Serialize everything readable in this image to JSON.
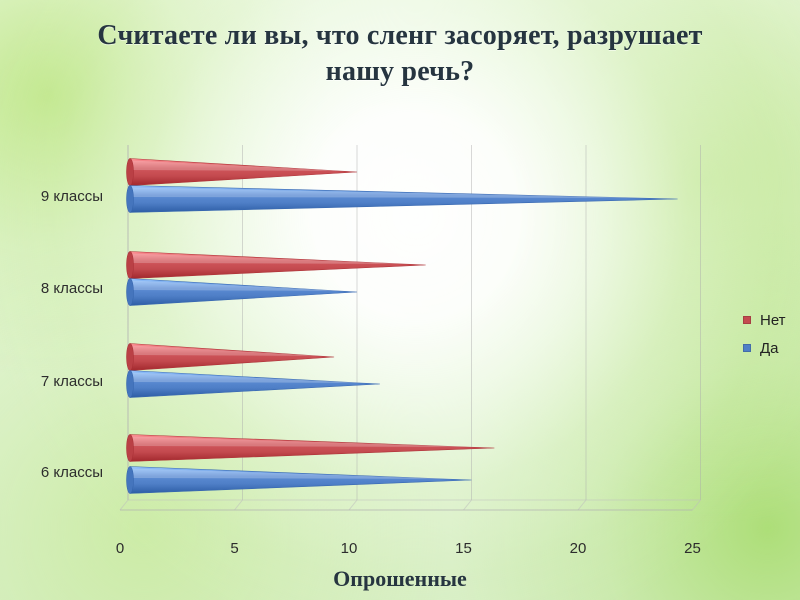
{
  "title": "Считаете ли вы, что сленг засоряет, разрушает\nнашу речь?",
  "chart_data": {
    "type": "bar",
    "orientation": "horizontal",
    "categories": [
      "6 классы",
      "7 классы",
      "8 классы",
      "9 классы"
    ],
    "series": [
      {
        "name": "Нет",
        "color": "#c44a4f",
        "values": [
          16,
          9,
          13,
          10
        ]
      },
      {
        "name": "Да",
        "color": "#4f7fc7",
        "values": [
          15,
          11,
          10,
          24
        ]
      }
    ],
    "xlim": [
      0,
      25
    ],
    "ticks": [
      0,
      5,
      10,
      15,
      20,
      25
    ],
    "grid": true,
    "xlabel": "Опрошенные",
    "legend_position": "right"
  }
}
